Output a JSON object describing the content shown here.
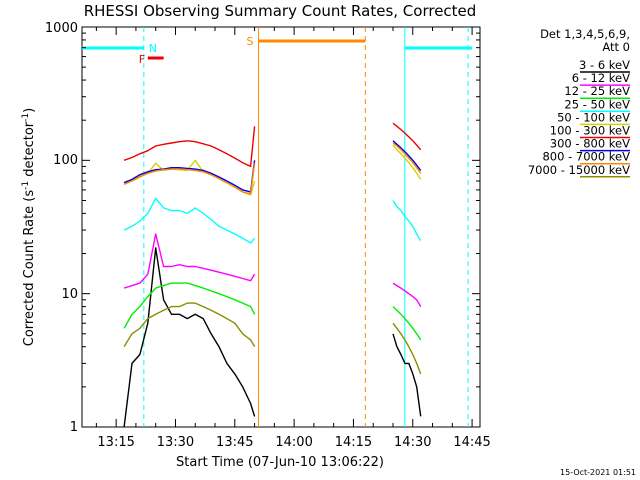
{
  "chart_data": {
    "type": "line",
    "title": "RHESSI Observing Summary Count Rates, Corrected",
    "xlabel": "Start Time (07-Jun-10 13:06:22)",
    "ylabel": "Corrected Count Rate (s",
    "ylabel_sup1": "-1",
    "ylabel_mid": " detector",
    "ylabel_sup2": "-1",
    "ylabel_end": ")",
    "y_scale": "log",
    "ylim": [
      1,
      1000
    ],
    "xlim": [
      "13:06:22",
      "14:47:00"
    ],
    "x_ticks": [
      "13:15",
      "13:30",
      "13:45",
      "14:00",
      "14:15",
      "14:30",
      "14:45"
    ],
    "y_ticks": [
      "1",
      "10",
      "100",
      "1000"
    ],
    "legend_header": [
      "Det 1,3,4,5,6,9,",
      "Att 0"
    ],
    "legend_position": "right",
    "series": [
      {
        "name": "3 - 6 keV",
        "color": "#000000"
      },
      {
        "name": "6 - 12 keV",
        "color": "#ff00ff"
      },
      {
        "name": "12 - 25 keV",
        "color": "#00ee00"
      },
      {
        "name": "25 - 50 keV",
        "color": "#00ffff"
      },
      {
        "name": "50 - 100 keV",
        "color": "#d4d400"
      },
      {
        "name": "100 - 300 keV",
        "color": "#ee0000"
      },
      {
        "name": "300 - 800 keV",
        "color": "#0000ee"
      },
      {
        "name": "800 - 7000 keV",
        "color": "#ff8800"
      },
      {
        "name": "7000 - 15000 keV",
        "color": "#8c8c00"
      }
    ],
    "segments": [
      {
        "x": [
          "13:17",
          "13:19",
          "13:21",
          "13:23",
          "13:25",
          "13:27",
          "13:29",
          "13:31",
          "13:33",
          "13:35",
          "13:37",
          "13:39",
          "13:41",
          "13:43",
          "13:45",
          "13:47",
          "13:49",
          "13:50"
        ],
        "series_values": [
          [
            1,
            3,
            3.5,
            6,
            22,
            9,
            7,
            7,
            6.5,
            7,
            6.5,
            5,
            4,
            3,
            2.5,
            2,
            1.5,
            1.2
          ],
          [
            11,
            11.5,
            12,
            14,
            28,
            16,
            16,
            16.5,
            16,
            16,
            15.5,
            15,
            14.5,
            14,
            13.5,
            13,
            12.5,
            14
          ],
          [
            5.5,
            7,
            8,
            9.5,
            11,
            11.5,
            12,
            12,
            12,
            11.5,
            11,
            10.5,
            10,
            9.5,
            9,
            8.5,
            8,
            7
          ],
          [
            30,
            32,
            35,
            40,
            52,
            44,
            42,
            42,
            40,
            44,
            40,
            36,
            32,
            30,
            28,
            26,
            24,
            26
          ],
          [
            68,
            72,
            76,
            80,
            95,
            84,
            86,
            85,
            84,
            100,
            82,
            78,
            73,
            68,
            63,
            58,
            55,
            70
          ],
          [
            100,
            105,
            112,
            118,
            128,
            132,
            135,
            138,
            140,
            138,
            133,
            128,
            120,
            112,
            104,
            96,
            90,
            180
          ],
          [
            68,
            72,
            78,
            82,
            85,
            86,
            88,
            88,
            87,
            86,
            84,
            80,
            75,
            70,
            65,
            60,
            58,
            100
          ],
          [
            66,
            70,
            75,
            80,
            83,
            85,
            86,
            86,
            85,
            84,
            82,
            78,
            73,
            68,
            63,
            58,
            56,
            95
          ],
          [
            4,
            5,
            5.5,
            6.5,
            7,
            7.5,
            8,
            8,
            8.5,
            8.5,
            8,
            7.5,
            7,
            6.5,
            6,
            5,
            4.5,
            4
          ]
        ]
      },
      {
        "x": [
          "14:25",
          "14:26",
          "14:27",
          "14:28",
          "14:29",
          "14:30",
          "14:31",
          "14:32"
        ],
        "series_values": [
          [
            5,
            4,
            3.5,
            3,
            3,
            2.5,
            2,
            1.2
          ],
          [
            12,
            11.5,
            11,
            10.5,
            10,
            9.5,
            9,
            8
          ],
          [
            8,
            7.5,
            7,
            6.5,
            6,
            5.5,
            5,
            4.5
          ],
          [
            50,
            45,
            42,
            38,
            35,
            32,
            28,
            25
          ],
          [
            130,
            120,
            112,
            104,
            96,
            88,
            80,
            72
          ],
          [
            190,
            180,
            170,
            160,
            150,
            140,
            130,
            120
          ],
          [
            140,
            132,
            124,
            116,
            108,
            100,
            92,
            84
          ],
          [
            135,
            128,
            120,
            112,
            104,
            96,
            88,
            80
          ],
          [
            6,
            5.5,
            5,
            4.5,
            4,
            3.5,
            3,
            2.5
          ]
        ]
      }
    ],
    "annotations": {
      "night_label": "N",
      "flare_label": "F",
      "saa_label": "S",
      "cyan_bar_color": "#00ffff",
      "orange_bar_color": "#ff8800",
      "red_bar_color": "#ee0000"
    },
    "footer_date": "15-Oct-2021 01:51"
  }
}
